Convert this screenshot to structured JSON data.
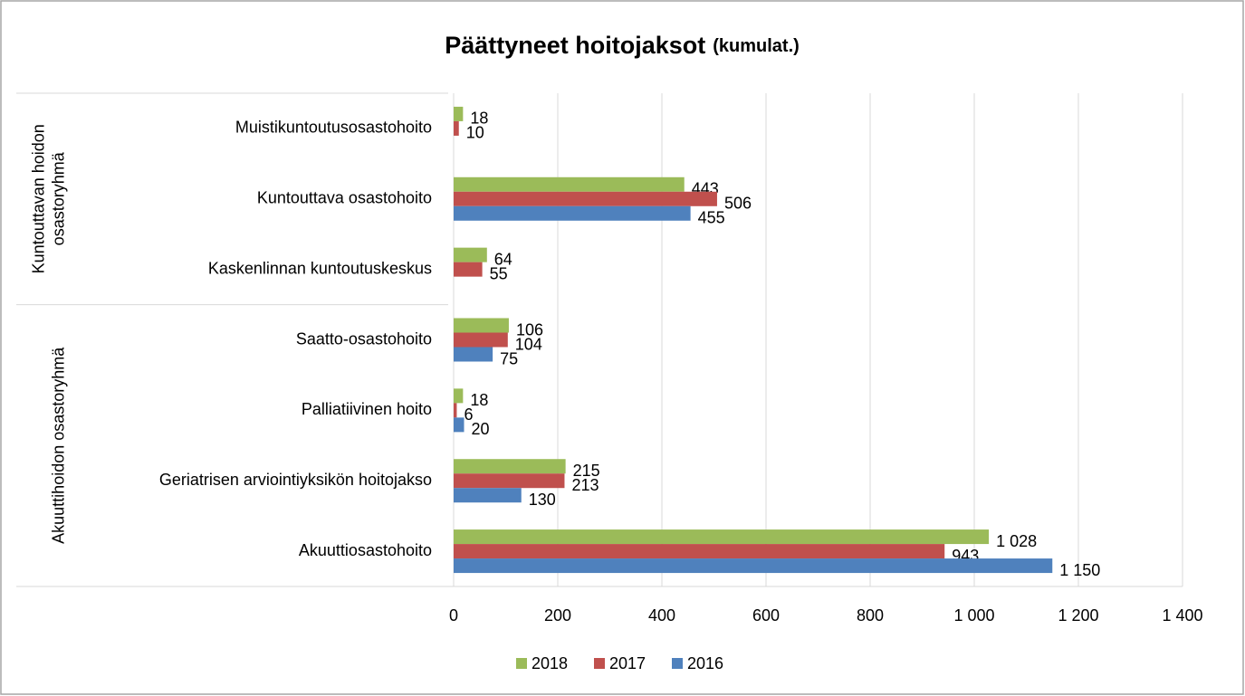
{
  "chart_data": {
    "type": "hbar",
    "title": "Päättyneet hoitojaksot",
    "title_note": "(kumulat.)",
    "groups": [
      {
        "label_lines": [
          "Kuntouttavan hoidon",
          "osastoryhmä"
        ],
        "categories": [
          "Muistikuntoutusosastohoito",
          "Kuntouttava osastohoito",
          "Kaskenlinnan kuntoutuskeskus"
        ]
      },
      {
        "label_lines": [
          "Akuuttihoidon osastoryhmä"
        ],
        "categories": [
          "Saatto-osastohoito",
          "Palliatiivinen hoito",
          "Geriatrisen arviointiyksikön hoitojakso",
          "Akuuttiosastohoito"
        ]
      }
    ],
    "series": [
      {
        "name": "2018",
        "color": "#9bbb59",
        "values": [
          18,
          443,
          64,
          106,
          18,
          215,
          1028
        ],
        "value_labels": [
          "18",
          "443",
          "64",
          "106",
          "18",
          "215",
          "1 028"
        ]
      },
      {
        "name": "2017",
        "color": "#c0504d",
        "values": [
          10,
          506,
          55,
          104,
          6,
          213,
          943
        ],
        "value_labels": [
          "10",
          "506",
          "55",
          "104",
          "6",
          "213",
          "943"
        ]
      },
      {
        "name": "2016",
        "color": "#4f81bd",
        "values": [
          null,
          455,
          null,
          75,
          20,
          130,
          1150
        ],
        "value_labels": [
          null,
          "455",
          null,
          "75",
          "20",
          "130",
          "1 150"
        ]
      }
    ],
    "xlim": [
      0,
      1400
    ],
    "xticks": [
      0,
      200,
      400,
      600,
      800,
      {
        "value": 1000,
        "label": "1 000"
      },
      {
        "value": 1200,
        "label": "1 200"
      },
      {
        "value": 1400,
        "label": "1 400"
      }
    ],
    "grid": true,
    "legend": "bottom"
  }
}
